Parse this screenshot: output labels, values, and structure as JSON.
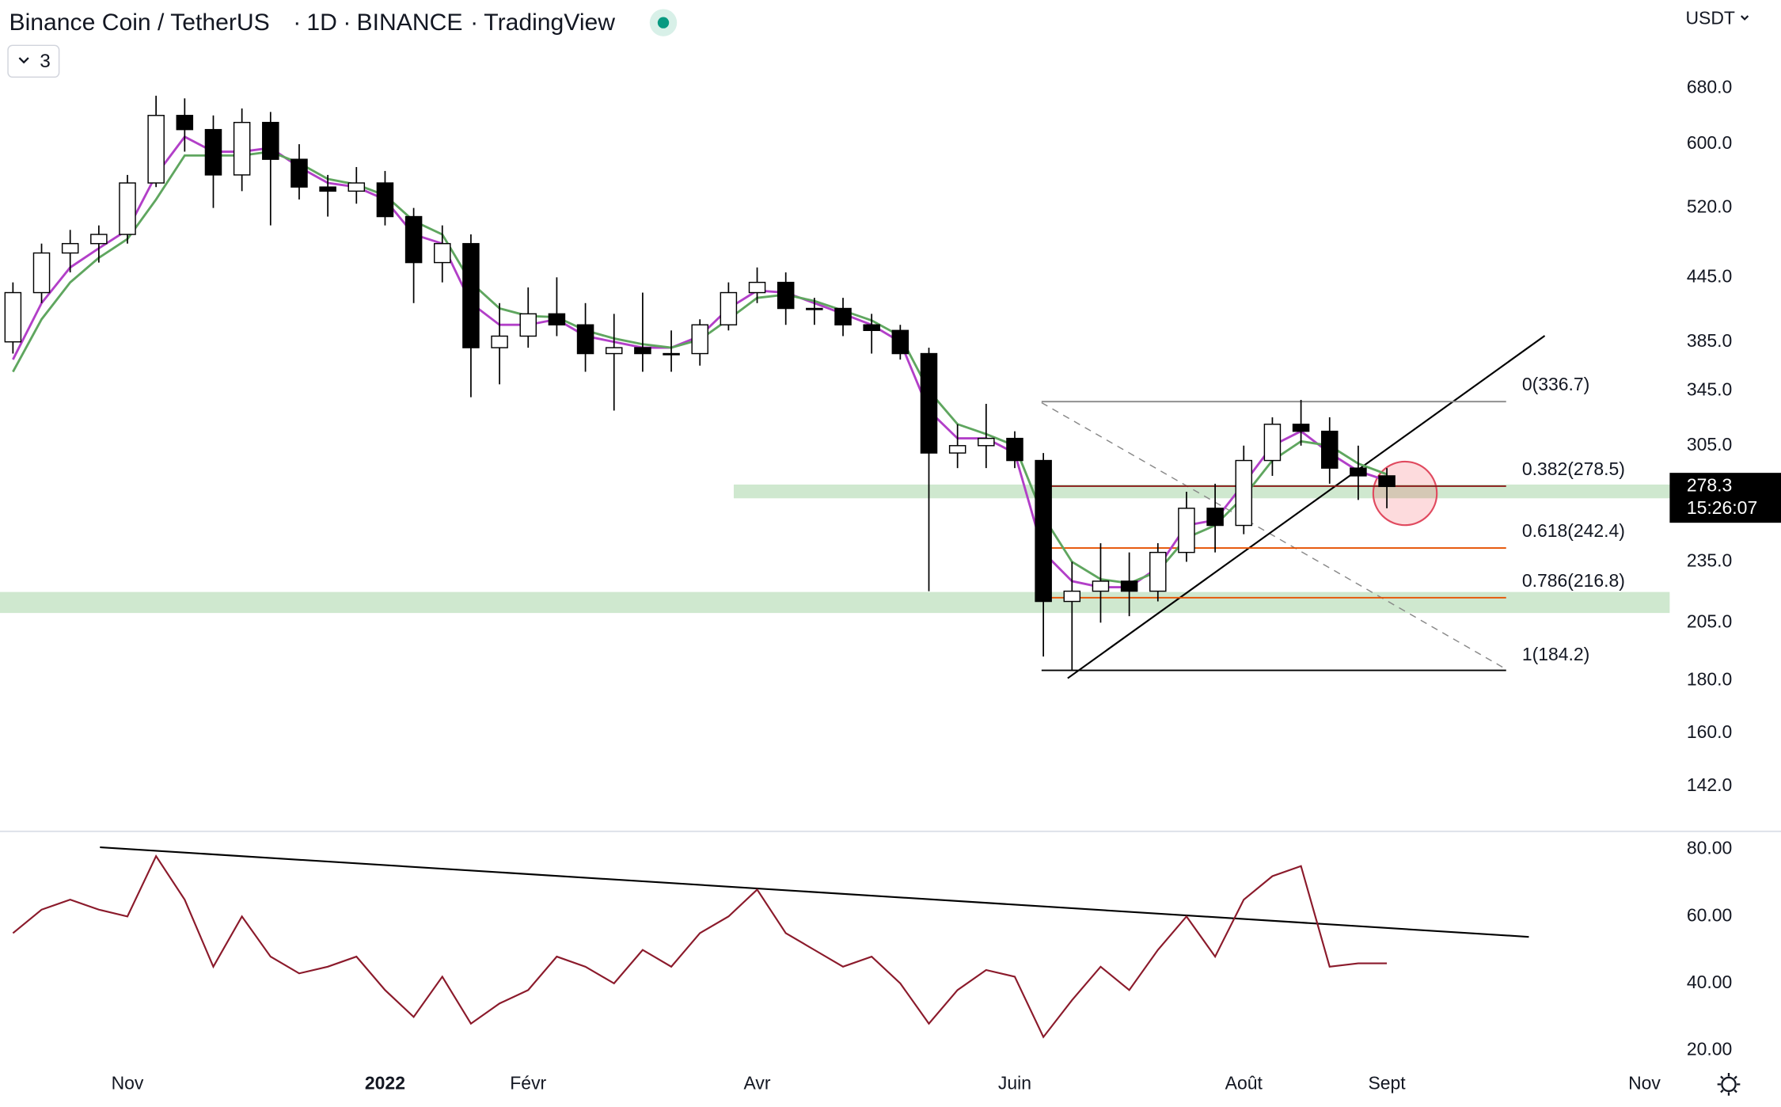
{
  "header": {
    "title": "Binance Coin / TetherUS",
    "separator": "·",
    "interval": "1D",
    "exchange": "BINANCE",
    "source": "TradingView",
    "indicators": "3",
    "currency": "USDT"
  },
  "chart_data": {
    "type": "candlestick",
    "categories": [
      null,
      null,
      null,
      null,
      "Nov",
      null,
      null,
      null,
      null,
      null,
      null,
      null,
      null,
      "2022",
      null,
      null,
      null,
      null,
      "Févr",
      null,
      null,
      null,
      null,
      null,
      null,
      null,
      "Avr",
      null,
      null,
      null,
      null,
      null,
      null,
      null,
      null,
      "Juin",
      null,
      null,
      null,
      null,
      null,
      null,
      null,
      "Août",
      null,
      null,
      null,
      null,
      "Sept",
      null,
      null,
      null,
      null,
      null,
      null,
      null,
      null,
      "Nov"
    ],
    "open": [
      385,
      430,
      470,
      480,
      490,
      550,
      640,
      620,
      560,
      630,
      580,
      545,
      540,
      550,
      510,
      460,
      480,
      380,
      390,
      410,
      400,
      375,
      380,
      375,
      375,
      400,
      430,
      440,
      415,
      415,
      400,
      395,
      375,
      300,
      305,
      310,
      295,
      215,
      220,
      225,
      220,
      240,
      265,
      255,
      295,
      320,
      315,
      290,
      285,
      null,
      null,
      null,
      null,
      null,
      null,
      null,
      null,
      null
    ],
    "high": [
      440,
      480,
      495,
      500,
      560,
      669,
      665,
      640,
      650,
      645,
      600,
      560,
      570,
      565,
      520,
      500,
      490,
      420,
      435,
      445,
      420,
      410,
      430,
      395,
      405,
      440,
      455,
      450,
      425,
      425,
      410,
      400,
      380,
      320,
      335,
      315,
      300,
      235,
      245,
      240,
      245,
      275,
      280,
      305,
      325,
      338,
      325,
      305,
      290,
      null,
      null,
      null,
      null,
      null,
      null,
      null,
      null,
      null
    ],
    "low": [
      375,
      420,
      450,
      460,
      480,
      545,
      590,
      520,
      540,
      500,
      530,
      510,
      525,
      500,
      420,
      440,
      340,
      350,
      380,
      390,
      360,
      330,
      360,
      360,
      365,
      395,
      420,
      400,
      400,
      390,
      375,
      370,
      220,
      290,
      290,
      290,
      190,
      184,
      205,
      208,
      215,
      235,
      240,
      250,
      285,
      305,
      280,
      270,
      265,
      null,
      null,
      null,
      null,
      null,
      null,
      null,
      null,
      null
    ],
    "close": [
      430,
      470,
      480,
      490,
      550,
      640,
      620,
      560,
      630,
      580,
      545,
      540,
      550,
      510,
      460,
      480,
      380,
      390,
      410,
      400,
      375,
      380,
      375,
      375,
      400,
      430,
      440,
      415,
      415,
      400,
      395,
      375,
      300,
      305,
      310,
      295,
      215,
      220,
      225,
      220,
      240,
      265,
      255,
      295,
      320,
      315,
      290,
      285,
      278.3,
      null,
      null,
      null,
      null,
      null,
      null,
      null,
      null,
      null
    ],
    "up_color": "#ffffff",
    "down_color": "#000000",
    "series": [
      {
        "color": "#b23fc8",
        "values": [
          370,
          420,
          455,
          475,
          495,
          560,
          610,
          590,
          590,
          595,
          570,
          550,
          545,
          530,
          490,
          480,
          420,
          400,
          400,
          405,
          390,
          385,
          380,
          380,
          390,
          415,
          432,
          430,
          420,
          410,
          400,
          385,
          330,
          310,
          310,
          300,
          240,
          225,
          222,
          222,
          232,
          255,
          258,
          280,
          305,
          315,
          300,
          288,
          282,
          null,
          null,
          null,
          null,
          null,
          null,
          null,
          null,
          null
        ]
      },
      {
        "color": "#5fa65f",
        "values": [
          360,
          405,
          440,
          465,
          485,
          530,
          585,
          585,
          585,
          590,
          575,
          555,
          548,
          535,
          505,
          490,
          440,
          415,
          408,
          407,
          395,
          388,
          383,
          380,
          387,
          405,
          425,
          428,
          422,
          413,
          404,
          390,
          345,
          320,
          313,
          305,
          260,
          235,
          226,
          224,
          230,
          248,
          255,
          272,
          295,
          308,
          305,
          293,
          286,
          null,
          null,
          null,
          null,
          null,
          null,
          null,
          null,
          null
        ]
      }
    ],
    "log_scale": true,
    "ylim": [
      129.3,
      749
    ],
    "yticks": [
      {
        "value": 680,
        "label": "680.0"
      },
      {
        "value": 600,
        "label": "600.0"
      },
      {
        "value": 520,
        "label": "520.0"
      },
      {
        "value": 445,
        "label": "445.0"
      },
      {
        "value": 385,
        "label": "385.0"
      },
      {
        "value": 345,
        "label": "345.0"
      },
      {
        "value": 305,
        "label": "305.0"
      },
      {
        "value": 235,
        "label": "235.0"
      },
      {
        "value": 205,
        "label": "205.0"
      },
      {
        "value": 180,
        "label": "180.0"
      },
      {
        "value": 160,
        "label": "160.0"
      },
      {
        "value": 142,
        "label": "142.0"
      }
    ],
    "current_price": 278.3,
    "countdown": "15:26:07",
    "zones": [
      {
        "from": 271,
        "to": 279.5,
        "color": "#cfe8cf"
      },
      {
        "from": 209.5,
        "to": 219.6,
        "color": "#cfe8cf"
      }
    ],
    "fib_levels": [
      {
        "value": 336.7,
        "label": "0(336.7)",
        "color": "#8a8a8a"
      },
      {
        "value": 278.5,
        "label": "0.382(278.5)",
        "color": "#8b1a1a"
      },
      {
        "value": 242.4,
        "label": "0.618(242.4)",
        "color": "#e65100"
      },
      {
        "value": 216.8,
        "label": "0.786(216.8)",
        "color": "#e65100"
      },
      {
        "value": 184.2,
        "label": "1(184.2)",
        "color": "#000000"
      }
    ],
    "rsi": {
      "color": "#8b1a2b",
      "values": [
        55,
        62,
        65,
        62,
        60,
        78,
        65,
        45,
        60,
        48,
        43,
        45,
        48,
        38,
        30,
        42,
        28,
        34,
        38,
        48,
        45,
        40,
        50,
        45,
        55,
        60,
        68,
        55,
        50,
        45,
        48,
        40,
        28,
        38,
        44,
        42,
        24,
        35,
        45,
        38,
        50,
        60,
        48,
        65,
        72,
        75,
        45,
        46,
        46,
        null,
        null,
        null,
        null,
        null,
        null,
        null,
        null,
        null
      ],
      "ylim": [
        13.6,
        84.7
      ],
      "yticks": [
        {
          "value": 80,
          "label": "80.00"
        },
        {
          "value": 60,
          "label": "60.00"
        },
        {
          "value": 40,
          "label": "40.00"
        },
        {
          "value": 20,
          "label": "20.00"
        }
      ]
    }
  }
}
